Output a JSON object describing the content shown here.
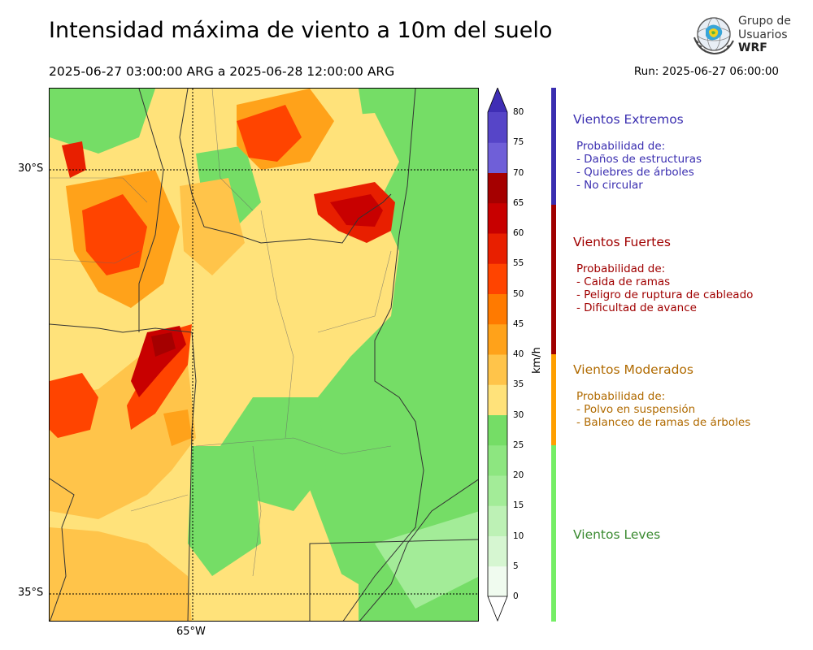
{
  "header": {
    "title": "Intensidad máxima de viento a 10m del suelo",
    "period": "2025-06-27 03:00:00 ARG  a  2025-06-28 12:00:00 ARG",
    "run": "Run: 2025-06-27 06:00:00"
  },
  "logo": {
    "line1": "Grupo de",
    "line2": "Usuarios",
    "line3": "WRF"
  },
  "map": {
    "lat_labels": [
      "30°S",
      "35°S"
    ],
    "lon_labels": [
      "65°W"
    ]
  },
  "colorbar": {
    "unit": "km/h",
    "ticks": [
      "0",
      "5",
      "10",
      "15",
      "20",
      "25",
      "30",
      "35",
      "40",
      "45",
      "50",
      "55",
      "60",
      "65",
      "70",
      "75",
      "80"
    ],
    "colors": [
      "#f0fbef",
      "#d6f6d1",
      "#bdf1b5",
      "#a3ec98",
      "#8de680",
      "#75dd66",
      "#ffe27a",
      "#ffc44a",
      "#ffa21a",
      "#ff7a00",
      "#ff4400",
      "#e81f00",
      "#c80000",
      "#a50000",
      "#6f5fd8",
      "#5645c8",
      "#3f2eb5"
    ]
  },
  "legend": [
    {
      "title": "Vientos Extremos",
      "color": "#3a2eb0",
      "lines": [
        "Probabilidad de:",
        "- Daños de estructuras",
        "- Quiebres de árboles",
        "- No circular"
      ]
    },
    {
      "title": "Vientos Fuertes",
      "color": "#a00000",
      "lines": [
        "Probabilidad de:",
        "- Caida de ramas",
        "- Peligro de ruptura de cableado",
        "- Dificultad de avance"
      ]
    },
    {
      "title": "Vientos Moderados",
      "color": "#b06a00",
      "lines": [
        "Probabilidad de:",
        "- Polvo en suspensión",
        "- Balanceo de ramas de árboles"
      ]
    },
    {
      "title": "Vientos Leves",
      "color": "#3a8a30",
      "lines": []
    }
  ]
}
